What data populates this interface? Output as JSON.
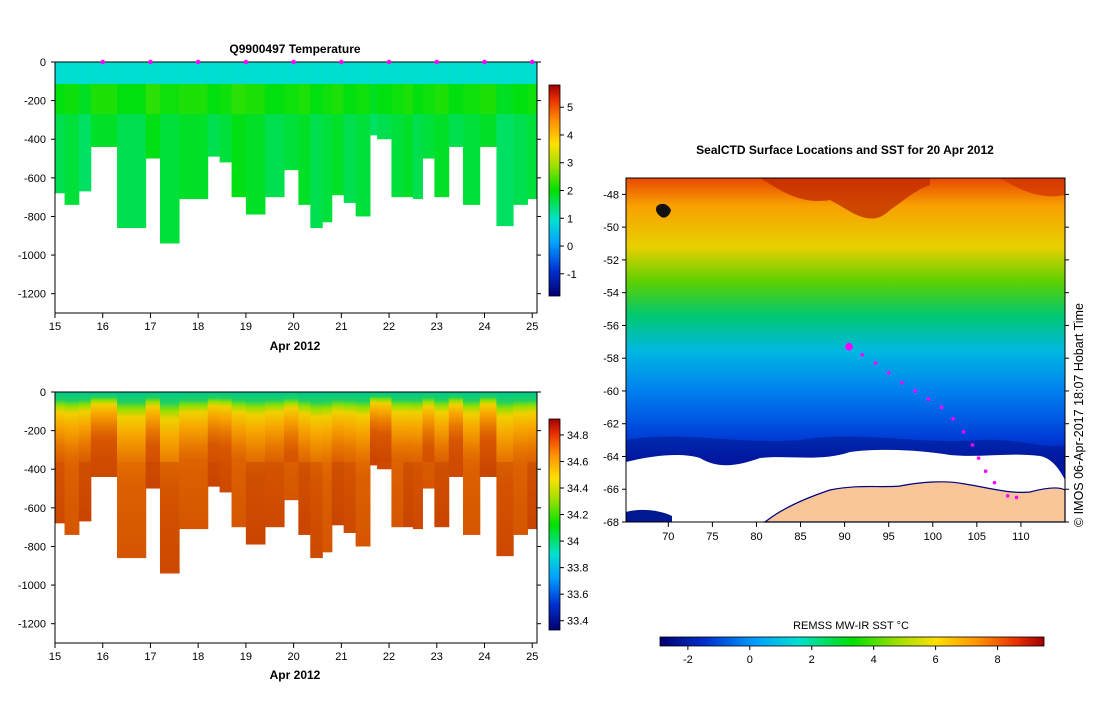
{
  "chart_data": [
    {
      "type": "heatmap",
      "title": "Q9900497  Temperature",
      "xlabel": "Apr 2012",
      "ylabel": "",
      "x_ticks": [
        "15",
        "16",
        "17",
        "18",
        "19",
        "20",
        "21",
        "22",
        "23",
        "24",
        "25"
      ],
      "y_ticks": [
        "0",
        "-200",
        "-400",
        "-600",
        "-800",
        "-1000",
        "-1200"
      ],
      "xlim": [
        15,
        25.1
      ],
      "ylim": [
        -1300,
        0
      ],
      "colorbar_ticks": [
        "5",
        "4",
        "3",
        "2",
        "1",
        "0",
        "-1"
      ],
      "colorbar_range": [
        -1.8,
        5.8
      ],
      "profile_markers_day": [
        16,
        17,
        18,
        19,
        20,
        21,
        22,
        23,
        24,
        25
      ],
      "profiles": {
        "start_day": [
          15,
          15.2,
          15.5,
          15.75,
          16.3,
          16.9,
          17.2,
          17.6,
          18.2,
          18.45,
          18.7,
          19,
          19.4,
          19.8,
          20.1,
          20.35,
          20.6,
          20.8,
          21.05,
          21.3,
          21.6,
          21.75,
          22.05,
          22.3,
          22.5,
          22.7,
          22.95,
          23.25,
          23.55,
          23.9,
          24.25,
          24.6,
          24.9
        ],
        "max_depth_m": [
          680,
          740,
          670,
          440,
          860,
          500,
          940,
          710,
          490,
          520,
          700,
          790,
          700,
          560,
          740,
          860,
          830,
          690,
          730,
          800,
          380,
          400,
          700,
          700,
          710,
          500,
          700,
          440,
          740,
          440,
          850,
          740,
          710
        ],
        "mixed_layer_temp": [
          1.6,
          1.7,
          1.5,
          1.8,
          1.6,
          1.9,
          1.7,
          1.8,
          1.6,
          1.7,
          1.9,
          1.8,
          1.6,
          1.7,
          1.8,
          1.6,
          1.7,
          1.8,
          1.6,
          1.7,
          1.5,
          1.6,
          1.7,
          1.8,
          1.6,
          1.7,
          1.8,
          1.6,
          1.7,
          1.8,
          1.5,
          1.6,
          1.7
        ]
      }
    },
    {
      "type": "heatmap",
      "title": "",
      "xlabel": "Apr 2012",
      "ylabel": "",
      "x_ticks": [
        "15",
        "16",
        "17",
        "18",
        "19",
        "20",
        "21",
        "22",
        "23",
        "24",
        "25"
      ],
      "y_ticks": [
        "0",
        "-200",
        "-400",
        "-600",
        "-800",
        "-1000",
        "-1200"
      ],
      "xlim": [
        15,
        25.1
      ],
      "ylim": [
        -1300,
        0
      ],
      "colorbar_ticks": [
        "34.8",
        "34.6",
        "34.4",
        "34.2",
        "34",
        "33.8",
        "33.6",
        "33.4"
      ],
      "colorbar_range": [
        33.33,
        34.92
      ]
    },
    {
      "type": "heatmap",
      "title": "SealCTD Surface Locations and SST for 20 Apr 2012",
      "x_ticks": [
        "70",
        "75",
        "80",
        "85",
        "90",
        "95",
        "100",
        "105",
        "110"
      ],
      "y_ticks": [
        "-48",
        "-50",
        "-52",
        "-54",
        "-56",
        "-58",
        "-60",
        "-62",
        "-64",
        "-66",
        "-68"
      ],
      "xlim": [
        65.2,
        115
      ],
      "ylim": [
        -68,
        -47
      ],
      "colorbar_label": "REMSS MW-IR SST °C",
      "colorbar_ticks": [
        "-2",
        "0",
        "2",
        "4",
        "6",
        "8"
      ],
      "colorbar_range": [
        -2.9,
        9.5
      ],
      "seal_track": {
        "lon": [
          90.5,
          92,
          93.5,
          95,
          96.5,
          98,
          99.5,
          101,
          102.3,
          103.5,
          104.5,
          105.2,
          106,
          107,
          108.5,
          109.5
        ],
        "lat": [
          -57.3,
          -57.8,
          -58.3,
          -58.9,
          -59.5,
          -60,
          -60.5,
          -61,
          -61.7,
          -62.5,
          -63.3,
          -64.1,
          -64.9,
          -65.6,
          -66.4,
          -66.5
        ],
        "current_position": {
          "lon": 90.5,
          "lat": -57.3
        }
      }
    }
  ],
  "credit": "© IMOS 06-Apr-2017 18:07 Hobart Time",
  "colors": {
    "marker": "#ff00ff",
    "land": "#f9c69a",
    "ice_edge": "#000080",
    "no_data": "#ffffff"
  }
}
